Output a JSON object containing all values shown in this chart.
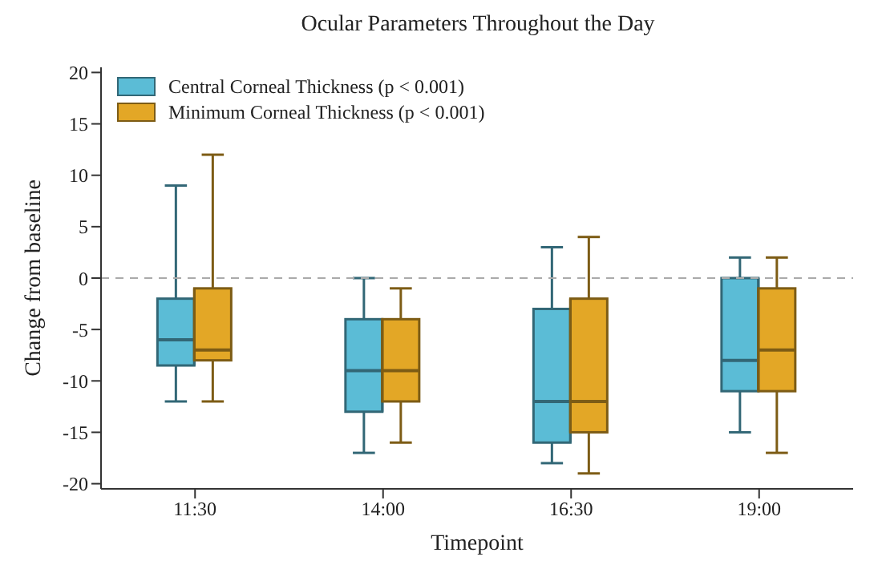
{
  "chart_data": {
    "type": "box",
    "title": "Ocular Parameters Throughout the Day",
    "xlabel": "Timepoint",
    "ylabel": "Change from baseline",
    "categories": [
      "11:30",
      "14:00",
      "16:30",
      "19:00"
    ],
    "series": [
      {
        "name": "Central Corneal Thickness (p < 0.001)",
        "color": "#5bbcd6",
        "boxes": [
          {
            "low": -12,
            "q1": -8.5,
            "median": -6,
            "q3": -2,
            "high": 9
          },
          {
            "low": -17,
            "q1": -13,
            "median": -9,
            "q3": -4,
            "high": 0
          },
          {
            "low": -18,
            "q1": -16,
            "median": -12,
            "q3": -3,
            "high": 3
          },
          {
            "low": -15,
            "q1": -11,
            "median": -8,
            "q3": 0,
            "high": 2
          }
        ]
      },
      {
        "name": "Minimum Corneal Thickness (p < 0.001)",
        "color": "#e3a726",
        "boxes": [
          {
            "low": -12,
            "q1": -8,
            "median": -7,
            "q3": -1,
            "high": 12
          },
          {
            "low": -16,
            "q1": -12,
            "median": -9,
            "q3": -4,
            "high": -1
          },
          {
            "low": -19,
            "q1": -15,
            "median": -12,
            "q3": -2,
            "high": 4
          },
          {
            "low": -17,
            "q1": -11,
            "median": -7,
            "q3": -1,
            "high": 2
          }
        ]
      }
    ],
    "ylim": [
      -20.5,
      20.5
    ],
    "yticks": [
      -20,
      -15,
      -10,
      -5,
      0,
      5,
      10,
      15,
      20
    ],
    "ref_lines": [
      {
        "axis": "y",
        "value": 0,
        "color": "#aaaaaa",
        "line_style": "dashed"
      }
    ],
    "legend": "top left",
    "grid": false
  }
}
